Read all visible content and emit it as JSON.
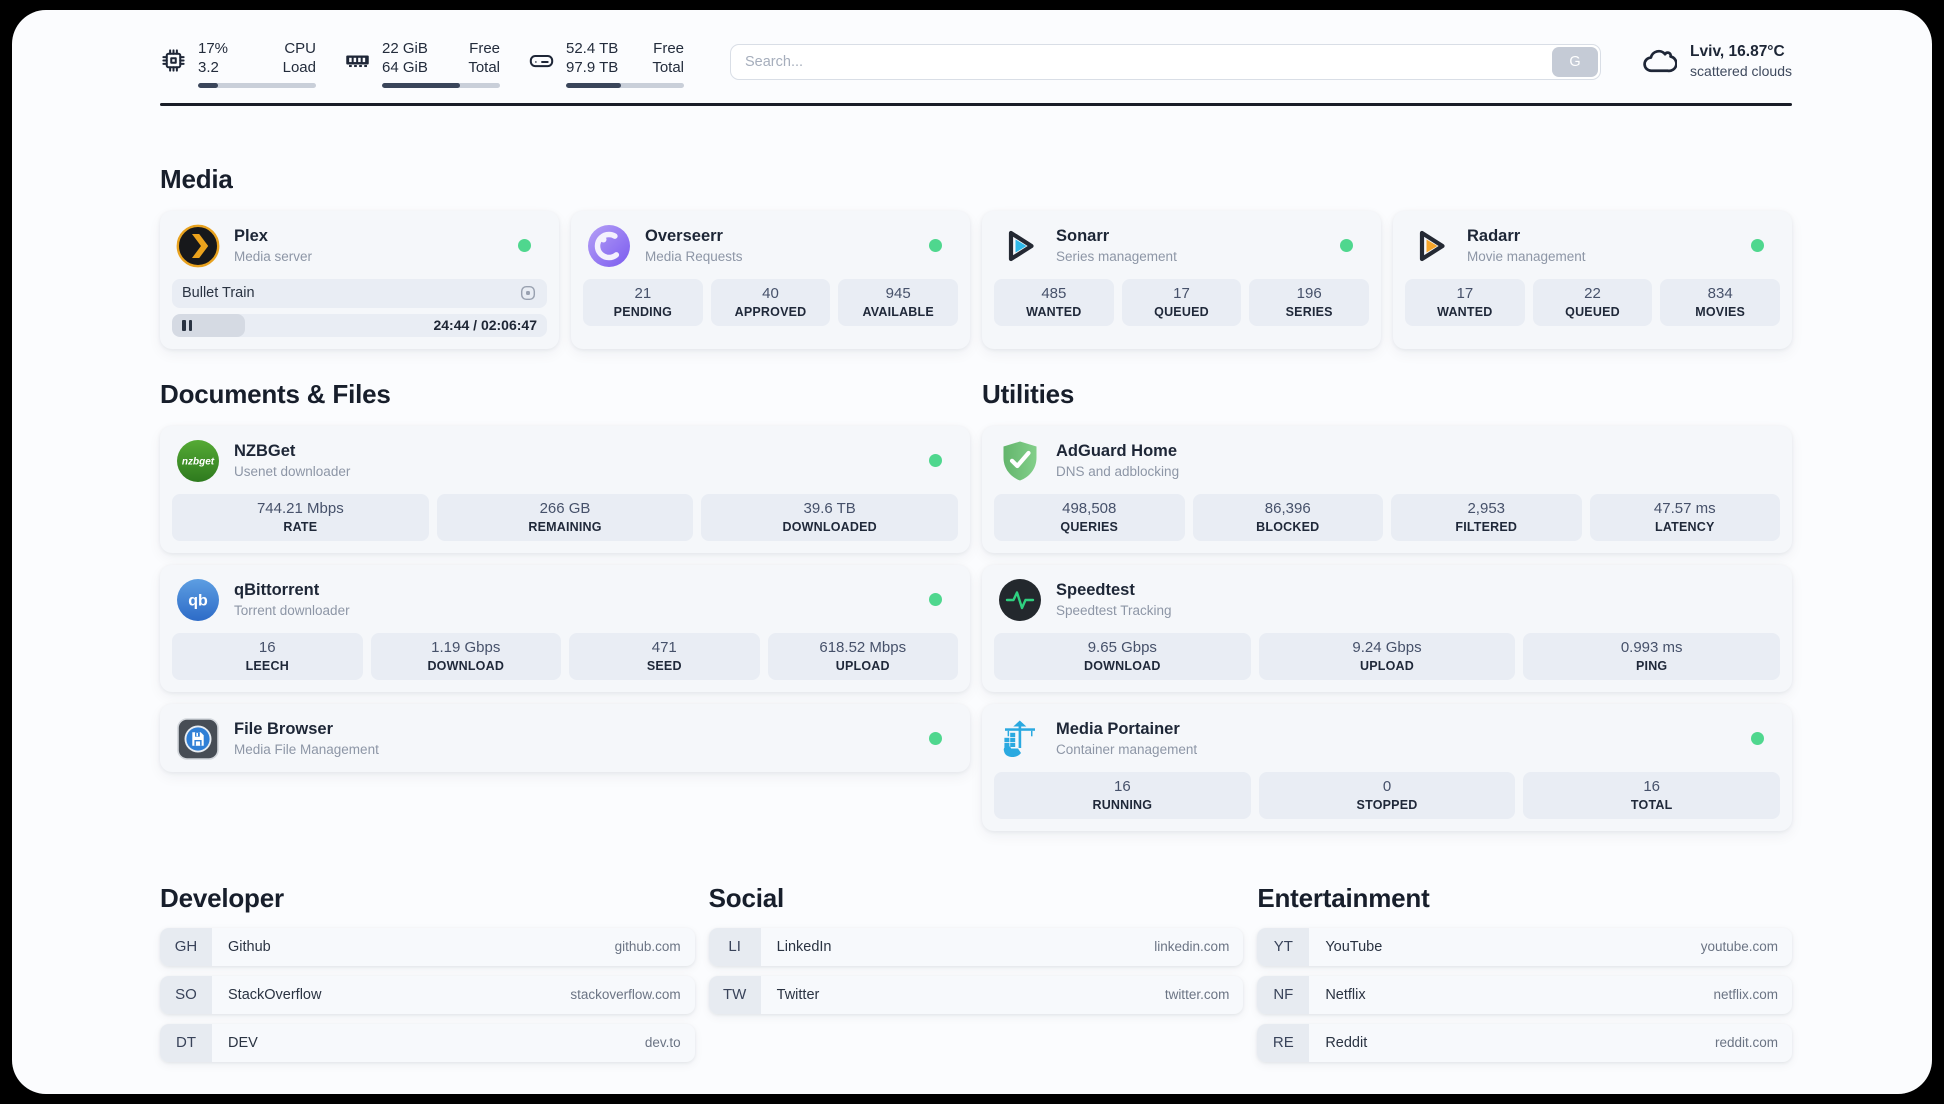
{
  "colors": {
    "status_online": "#4fd78e",
    "accent_dark": "#1e2637",
    "tile_bg": "#e9edf4",
    "progress_fill": "#3a455a"
  },
  "statusbar": {
    "stats": [
      {
        "icon": "cpu-icon",
        "col1": [
          "17%",
          "3.2"
        ],
        "col2": [
          "CPU",
          "Load"
        ],
        "progress": 17
      },
      {
        "icon": "ram-icon",
        "col1": [
          "22 GiB",
          "64 GiB"
        ],
        "col2": [
          "Free",
          "Total"
        ],
        "progress": 66
      },
      {
        "icon": "disk-icon",
        "col1": [
          "52.4 TB",
          "97.9 TB"
        ],
        "col2": [
          "Free",
          "Total"
        ],
        "progress": 47
      }
    ],
    "search": {
      "placeholder": "Search...",
      "button_label": "G"
    },
    "weather": {
      "icon": "cloud-icon",
      "location": "Lviv, 16.87°C",
      "condition": "scattered clouds"
    }
  },
  "sections": {
    "media": {
      "title": "Media",
      "apps": [
        {
          "id": "plex",
          "icon": "plex-icon",
          "name": "Plex",
          "subtitle": "Media server",
          "online": true,
          "now_playing": {
            "title": "Bullet Train",
            "time": "24:44 / 02:06:47",
            "progress_percent": 19.5
          },
          "stats": []
        },
        {
          "id": "overseerr",
          "icon": "overseerr-icon",
          "name": "Overseerr",
          "subtitle": "Media Requests",
          "online": true,
          "stats": [
            {
              "value": "21",
              "label": "PENDING"
            },
            {
              "value": "40",
              "label": "APPROVED"
            },
            {
              "value": "945",
              "label": "AVAILABLE"
            }
          ]
        },
        {
          "id": "sonarr",
          "icon": "sonarr-icon",
          "name": "Sonarr",
          "subtitle": "Series management",
          "online": true,
          "stats": [
            {
              "value": "485",
              "label": "WANTED"
            },
            {
              "value": "17",
              "label": "QUEUED"
            },
            {
              "value": "196",
              "label": "SERIES"
            }
          ]
        },
        {
          "id": "radarr",
          "icon": "radarr-icon",
          "name": "Radarr",
          "subtitle": "Movie management",
          "online": true,
          "stats": [
            {
              "value": "17",
              "label": "WANTED"
            },
            {
              "value": "22",
              "label": "QUEUED"
            },
            {
              "value": "834",
              "label": "MOVIES"
            }
          ]
        }
      ]
    },
    "documents": {
      "title": "Documents & Files",
      "apps": [
        {
          "id": "nzbget",
          "icon": "nzbget-icon",
          "name": "NZBGet",
          "subtitle": "Usenet downloader",
          "online": true,
          "stats": [
            {
              "value": "744.21 Mbps",
              "label": "RATE"
            },
            {
              "value": "266 GB",
              "label": "REMAINING"
            },
            {
              "value": "39.6 TB",
              "label": "DOWNLOADED"
            }
          ]
        },
        {
          "id": "qbittorrent",
          "icon": "qbittorrent-icon",
          "name": "qBittorrent",
          "subtitle": "Torrent downloader",
          "online": true,
          "stats": [
            {
              "value": "16",
              "label": "LEECH"
            },
            {
              "value": "1.19 Gbps",
              "label": "DOWNLOAD"
            },
            {
              "value": "471",
              "label": "SEED"
            },
            {
              "value": "618.52 Mbps",
              "label": "UPLOAD"
            }
          ]
        },
        {
          "id": "filebrowser",
          "icon": "filebrowser-icon",
          "name": "File Browser",
          "subtitle": "Media File Management",
          "online": true,
          "stats": []
        }
      ]
    },
    "utilities": {
      "title": "Utilities",
      "apps": [
        {
          "id": "adguard",
          "icon": "adguard-icon",
          "name": "AdGuard Home",
          "subtitle": "DNS and adblocking",
          "online": false,
          "stats": [
            {
              "value": "498,508",
              "label": "QUERIES"
            },
            {
              "value": "86,396",
              "label": "BLOCKED"
            },
            {
              "value": "2,953",
              "label": "FILTERED"
            },
            {
              "value": "47.57 ms",
              "label": "LATENCY"
            }
          ]
        },
        {
          "id": "speedtest",
          "icon": "speedtest-icon",
          "name": "Speedtest",
          "subtitle": "Speedtest Tracking",
          "online": false,
          "stats": [
            {
              "value": "9.65 Gbps",
              "label": "DOWNLOAD"
            },
            {
              "value": "9.24 Gbps",
              "label": "UPLOAD"
            },
            {
              "value": "0.993 ms",
              "label": "PING"
            }
          ]
        },
        {
          "id": "portainer",
          "icon": "portainer-icon",
          "name": "Media Portainer",
          "subtitle": "Container management",
          "online": true,
          "stats": [
            {
              "value": "16",
              "label": "RUNNING"
            },
            {
              "value": "0",
              "label": "STOPPED"
            },
            {
              "value": "16",
              "label": "TOTAL"
            }
          ]
        }
      ]
    }
  },
  "bookmarks": [
    {
      "title": "Developer",
      "links": [
        {
          "abbr": "GH",
          "name": "Github",
          "url": "github.com"
        },
        {
          "abbr": "SO",
          "name": "StackOverflow",
          "url": "stackoverflow.com"
        },
        {
          "abbr": "DT",
          "name": "DEV",
          "url": "dev.to"
        }
      ]
    },
    {
      "title": "Social",
      "links": [
        {
          "abbr": "LI",
          "name": "LinkedIn",
          "url": "linkedin.com"
        },
        {
          "abbr": "TW",
          "name": "Twitter",
          "url": "twitter.com"
        }
      ]
    },
    {
      "title": "Entertainment",
      "links": [
        {
          "abbr": "YT",
          "name": "YouTube",
          "url": "youtube.com"
        },
        {
          "abbr": "NF",
          "name": "Netflix",
          "url": "netflix.com"
        },
        {
          "abbr": "RE",
          "name": "Reddit",
          "url": "reddit.com"
        }
      ]
    }
  ]
}
